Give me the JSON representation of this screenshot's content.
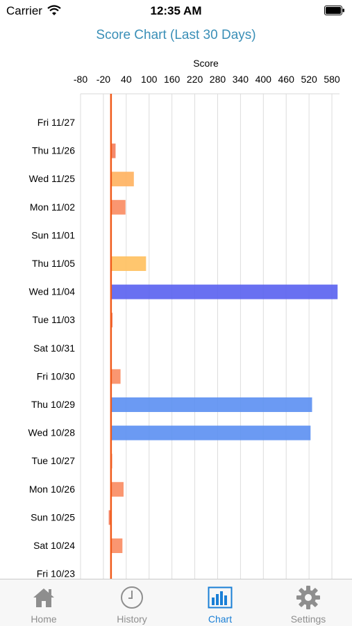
{
  "status_bar": {
    "carrier": "Carrier",
    "time": "12:35 AM",
    "wifi_icon": "wifi-icon",
    "battery_icon": "battery-icon"
  },
  "chart_title": "Score Chart (Last 30 Days)",
  "chart_data": {
    "type": "bar",
    "orientation": "horizontal",
    "xlabel": "Score",
    "xlim": [
      -80,
      600
    ],
    "xticks": [
      -80,
      -20,
      40,
      100,
      160,
      220,
      280,
      340,
      400,
      460,
      520,
      580
    ],
    "grid": true,
    "reference_line": 0,
    "categories": [
      "Fri 11/27",
      "Thu 11/26",
      "Wed 11/25",
      "Mon 11/02",
      "Sun 11/01",
      "Thu 11/05",
      "Wed 11/04",
      "Tue 11/03",
      "Sat 10/31",
      "Fri 10/30",
      "Thu 10/29",
      "Wed 10/28",
      "Tue 10/27",
      "Mon 10/26",
      "Sun 10/25",
      "Sat 10/24",
      "Fri 10/23"
    ],
    "values": [
      0,
      12,
      60,
      38,
      0,
      92,
      595,
      4,
      0,
      25,
      528,
      524,
      3,
      33,
      -6,
      30,
      0
    ],
    "colors": [
      "#f47c5a",
      "#f47c5a",
      "#ffb15e",
      "#f98b60",
      "#f47c5a",
      "#ffc05e",
      "#5960f0",
      "#f47c5a",
      "#f47c5a",
      "#f98b60",
      "#5b8ff2",
      "#5b8ff2",
      "#f47c5a",
      "#f98b60",
      "#f47c5a",
      "#f98b60",
      "#f47c5a"
    ]
  },
  "tab_bar": {
    "tabs": [
      {
        "label": "Home",
        "icon": "home-icon",
        "active": false
      },
      {
        "label": "History",
        "icon": "clock-icon",
        "active": false
      },
      {
        "label": "Chart",
        "icon": "bar-chart-icon",
        "active": true
      },
      {
        "label": "Settings",
        "icon": "gear-icon",
        "active": false
      }
    ],
    "inactive_color": "#8e8e8e",
    "active_color": "#1a7fd6"
  }
}
